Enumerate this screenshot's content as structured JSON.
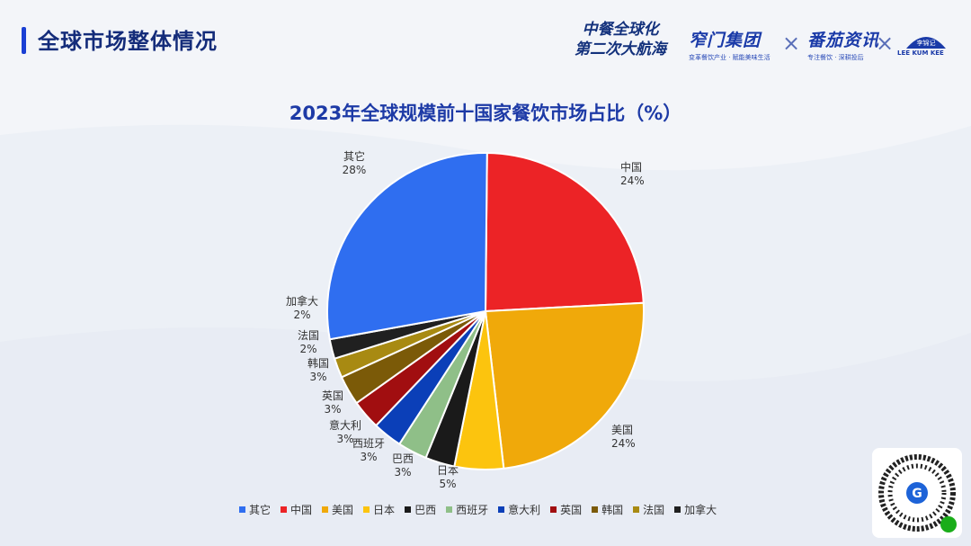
{
  "header": {
    "title": "全球市场整体情况",
    "slogan_line1": "中餐全球化",
    "slogan_line2": "第二次大航海",
    "logos": [
      {
        "name": "窄门集团",
        "sub": "变革餐饮产业 · 赋能美味生活"
      },
      {
        "name": "番茄资讯",
        "sub": "专注餐饮 · 深耕投后"
      }
    ],
    "lee_logo_text": "LEE KUM KEE",
    "lee_logo_cn": "李锦记"
  },
  "colors": {
    "title_blue": "#1d3aa6",
    "other": "#2f6ef0",
    "china": "#ec2326",
    "usa": "#f0a90a",
    "japan": "#fcc40e",
    "brazil": "#1a1a1a",
    "spain": "#8fbf88",
    "italy": "#0b3fb8",
    "uk": "#a10e10",
    "korea": "#7b5a08",
    "france": "#a88a12",
    "canada": "#202020"
  },
  "chart_data": {
    "type": "pie",
    "title": "2023年全球规模前十国家餐饮市场占比（%）",
    "legend_position": "bottom",
    "slices": [
      {
        "label": "中国",
        "value": 24,
        "display": "24%",
        "color": "#ec2326"
      },
      {
        "label": "美国",
        "value": 24,
        "display": "24%",
        "color": "#f0a90a"
      },
      {
        "label": "日本",
        "value": 5,
        "display": "5%",
        "color": "#fcc40e"
      },
      {
        "label": "巴西",
        "value": 3,
        "display": "3%",
        "color": "#1a1a1a"
      },
      {
        "label": "西班牙",
        "value": 3,
        "display": "3%",
        "color": "#8fbf88"
      },
      {
        "label": "意大利",
        "value": 3,
        "display": "3%",
        "color": "#0b3fb8"
      },
      {
        "label": "英国",
        "value": 3,
        "display": "3%",
        "color": "#a10e10"
      },
      {
        "label": "韩国",
        "value": 3,
        "display": "3%",
        "color": "#7b5a08"
      },
      {
        "label": "法国",
        "value": 2,
        "display": "2%",
        "color": "#a88a12"
      },
      {
        "label": "加拿大",
        "value": 2,
        "display": "2%",
        "color": "#202020"
      },
      {
        "label": "其它",
        "value": 28,
        "display": "28%",
        "color": "#2f6ef0"
      }
    ],
    "legend": [
      "其它",
      "中国",
      "美国",
      "日本",
      "巴西",
      "西班牙",
      "意大利",
      "英国",
      "韩国",
      "法国",
      "加拿大"
    ]
  }
}
